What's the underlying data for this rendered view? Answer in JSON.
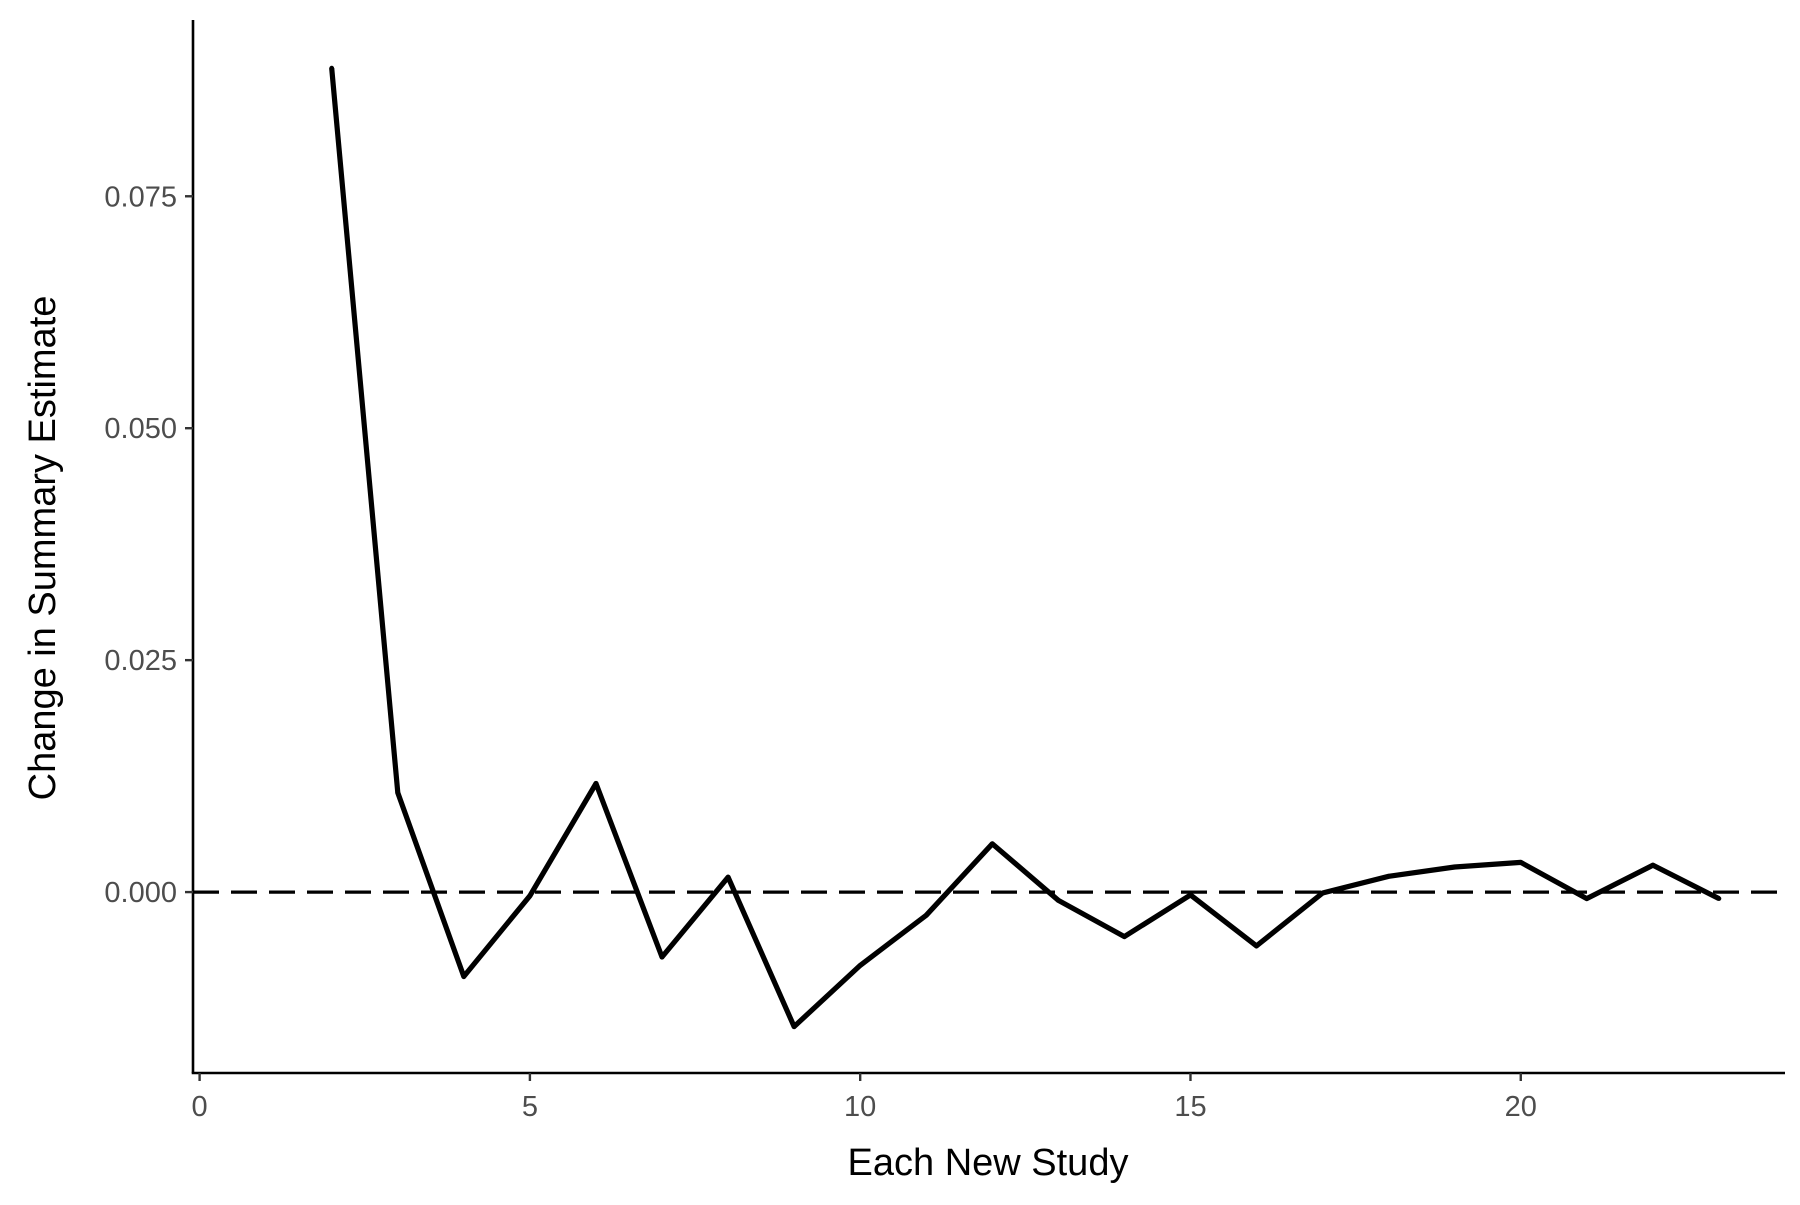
{
  "chart_data": {
    "type": "line",
    "title": "",
    "xlabel": "Each New Study",
    "ylabel": "Change in Summary Estimate",
    "xlim": [
      -0.1,
      24
    ],
    "ylim": [
      -0.0195,
      0.094
    ],
    "x_ticks": [
      0,
      5,
      10,
      15,
      20
    ],
    "x_tick_labels": [
      "0",
      "5",
      "10",
      "15",
      "20"
    ],
    "y_ticks": [
      0.0,
      0.025,
      0.05,
      0.075
    ],
    "y_tick_labels": [
      "0.000",
      "0.025",
      "0.050",
      "0.075"
    ],
    "grid": false,
    "reference_line": {
      "y": 0.0,
      "style": "dashed",
      "color": "#000000"
    },
    "series": [
      {
        "name": "change",
        "color": "#000000",
        "x": [
          2,
          3,
          4,
          5,
          6,
          7,
          8,
          9,
          10,
          11,
          12,
          13,
          14,
          15,
          16,
          17,
          18,
          19,
          20,
          21,
          22,
          23
        ],
        "y": [
          0.0888,
          0.0107,
          -0.0091,
          -0.0004,
          0.0117,
          -0.007,
          0.0016,
          -0.0145,
          -0.0079,
          -0.0025,
          0.0052,
          -0.0009,
          -0.0048,
          -0.0003,
          -0.0058,
          -0.0001,
          0.0017,
          0.0027,
          0.0032,
          -0.0007,
          0.0029,
          -0.0007
        ]
      }
    ]
  }
}
